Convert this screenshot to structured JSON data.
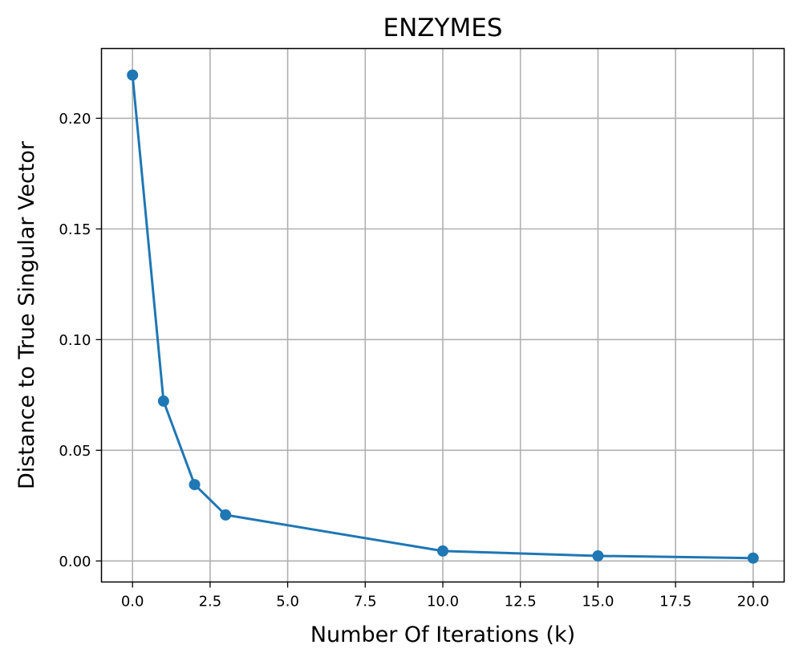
{
  "chart_data": {
    "type": "line",
    "title": "ENZYMES",
    "xlabel": "Number Of Iterations (k)",
    "ylabel": "Distance to True Singular Vector",
    "xlim": [
      -1,
      21
    ],
    "ylim": [
      -0.0095,
      0.2315
    ],
    "xticks": [
      0.0,
      2.5,
      5.0,
      7.5,
      10.0,
      12.5,
      15.0,
      17.5,
      20.0
    ],
    "xtick_labels": [
      "0.0",
      "2.5",
      "5.0",
      "7.5",
      "10.0",
      "12.5",
      "15.0",
      "17.5",
      "20.0"
    ],
    "yticks": [
      0.0,
      0.05,
      0.1,
      0.15,
      0.2
    ],
    "ytick_labels": [
      "0.00",
      "0.05",
      "0.10",
      "0.15",
      "0.20"
    ],
    "grid": true,
    "series": [
      {
        "x": [
          0,
          1,
          2,
          3,
          10,
          15,
          20
        ],
        "y": [
          0.2195,
          0.0722,
          0.0345,
          0.0208,
          0.0045,
          0.0023,
          0.0013
        ],
        "color": "#1f77b4",
        "marker": "circle"
      }
    ]
  }
}
